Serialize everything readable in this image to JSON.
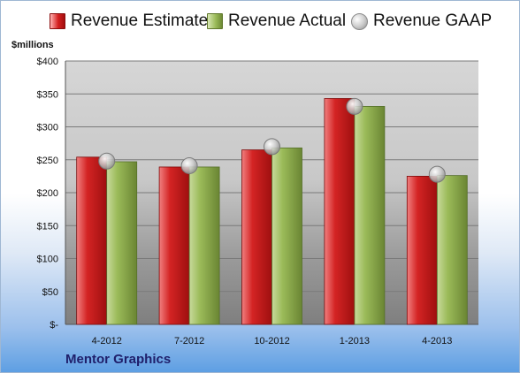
{
  "company_label": "Mentor Graphics",
  "unit_label": "$millions",
  "legend": [
    {
      "label": "Revenue Estimate",
      "marker": "red-bar-swatch",
      "color": "#cc1f1f"
    },
    {
      "label": "Revenue Actual",
      "marker": "green-bar-swatch",
      "color": "#9bbb59"
    },
    {
      "label": "Revenue GAAP",
      "marker": "gray-sphere-marker",
      "color": "#b0b0b0"
    }
  ],
  "chart_data": {
    "type": "bar",
    "categories": [
      "4-2012",
      "7-2012",
      "10-2012",
      "1-2013",
      "4-2013"
    ],
    "series": [
      {
        "name": "Revenue Estimate",
        "type": "bar",
        "values": [
          254,
          239,
          265,
          343,
          225
        ]
      },
      {
        "name": "Revenue Actual",
        "type": "bar",
        "values": [
          247,
          239,
          268,
          331,
          226
        ]
      },
      {
        "name": "Revenue GAAP",
        "type": "scatter",
        "values": [
          248,
          241,
          270,
          331,
          228
        ]
      }
    ],
    "ylim": [
      0,
      400
    ],
    "yticks": [
      0,
      50,
      100,
      150,
      200,
      250,
      300,
      350,
      400
    ],
    "ytick_labels": [
      "$-",
      "$50",
      "$100",
      "$150",
      "$200",
      "$250",
      "$300",
      "$350",
      "$400"
    ],
    "grid": true,
    "legend_position": "top"
  }
}
